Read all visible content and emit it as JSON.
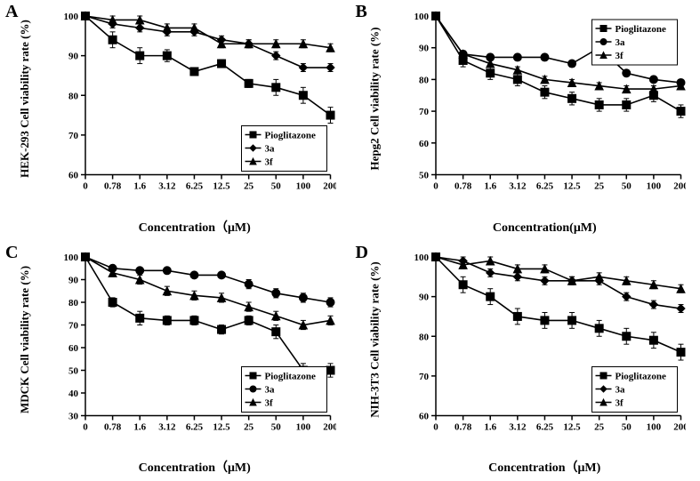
{
  "figure_width": 787,
  "figure_height": 541,
  "background_color": "#ffffff",
  "line_color": "#000000",
  "panels": [
    {
      "letter": "A",
      "ylabel": "HEK-293 Cell viability rate (%)",
      "xlabel": "Concentration（μM)",
      "ylim": [
        60,
        100
      ],
      "ytick_step": 10,
      "xticks": [
        "0",
        "0.78",
        "1.6",
        "3.12",
        "6.25",
        "12.5",
        "25",
        "50",
        "100",
        "200"
      ],
      "legend_pos": "bottom-right",
      "series": [
        {
          "name": "Pioglitazone",
          "marker": "square",
          "y": [
            100,
            94,
            90,
            90,
            86,
            88,
            83,
            82,
            80,
            75
          ],
          "err": [
            0,
            2,
            2,
            1.5,
            1,
            1,
            1,
            2,
            2,
            2
          ]
        },
        {
          "name": "3a",
          "marker": "diamond",
          "y": [
            100,
            98,
            97,
            96,
            96,
            94,
            93,
            90,
            87,
            87
          ],
          "err": [
            0,
            1,
            1,
            1,
            1,
            1,
            1,
            1,
            1,
            1
          ]
        },
        {
          "name": "3f",
          "marker": "triangle",
          "y": [
            100,
            99,
            99,
            97,
            97,
            93,
            93,
            93,
            93,
            92
          ],
          "err": [
            0,
            1,
            1,
            1,
            1,
            1,
            1,
            1,
            1,
            1
          ]
        }
      ]
    },
    {
      "letter": "B",
      "ylabel": "Hepg2 Cell viability rate (%)",
      "xlabel": "Concentration(μM)",
      "ylim": [
        50,
        100
      ],
      "ytick_step": 10,
      "xticks": [
        "0",
        "0.78",
        "1.6",
        "3.12",
        "6.25",
        "12.5",
        "25",
        "50",
        "100",
        "200"
      ],
      "legend_pos": "top-right",
      "series": [
        {
          "name": "Pioglitazone",
          "marker": "square",
          "y": [
            100,
            86,
            82,
            80,
            76,
            74,
            72,
            72,
            75,
            70
          ],
          "err": [
            0,
            2,
            2,
            2,
            2,
            2,
            2,
            2,
            2,
            2
          ]
        },
        {
          "name": "3a",
          "marker": "circle",
          "y": [
            100,
            88,
            87,
            87,
            87,
            85,
            90,
            82,
            80,
            79
          ],
          "err": [
            0,
            1,
            1,
            1,
            1,
            1,
            1,
            1,
            1,
            1
          ]
        },
        {
          "name": "3f",
          "marker": "triangle",
          "y": [
            100,
            88,
            85,
            83,
            80,
            79,
            78,
            77,
            77,
            78
          ],
          "err": [
            0,
            1,
            1,
            1,
            1,
            1,
            1,
            1,
            1,
            1
          ]
        }
      ]
    },
    {
      "letter": "C",
      "ylabel": "MDCK Cell viability rate (%)",
      "xlabel": "Concentration（μM)",
      "ylim": [
        30,
        100
      ],
      "ytick_step": 10,
      "xticks": [
        "0",
        "0.78",
        "1.6",
        "3.12",
        "6.25",
        "12.5",
        "25",
        "50",
        "100",
        "200"
      ],
      "legend_pos": "bottom-right",
      "series": [
        {
          "name": "Pioglitazone",
          "marker": "square",
          "y": [
            100,
            80,
            73,
            72,
            72,
            68,
            72,
            67,
            50,
            50
          ],
          "err": [
            0,
            2,
            3,
            2,
            2,
            2,
            2,
            3,
            3,
            3
          ]
        },
        {
          "name": "3a",
          "marker": "circle",
          "y": [
            100,
            95,
            94,
            94,
            92,
            92,
            88,
            84,
            82,
            80
          ],
          "err": [
            0,
            1,
            1,
            1,
            1,
            1,
            2,
            2,
            2,
            2
          ]
        },
        {
          "name": "3f",
          "marker": "triangle",
          "y": [
            100,
            93,
            90,
            85,
            83,
            82,
            78,
            74,
            70,
            72
          ],
          "err": [
            0,
            1,
            2,
            2,
            2,
            2,
            2,
            2,
            2,
            2
          ]
        }
      ]
    },
    {
      "letter": "D",
      "ylabel": "NIH-3T3 Cell viability rate (%)",
      "xlabel": "Concentration（μM)",
      "ylim": [
        60,
        100
      ],
      "ytick_step": 10,
      "xticks": [
        "0",
        "0.78",
        "1.6",
        "3.12",
        "6.25",
        "12.5",
        "25",
        "50",
        "100",
        "200"
      ],
      "legend_pos": "bottom-right",
      "series": [
        {
          "name": "Pioglitazone",
          "marker": "square",
          "y": [
            100,
            93,
            90,
            85,
            84,
            84,
            82,
            80,
            79,
            76
          ],
          "err": [
            0,
            2,
            2,
            2,
            2,
            2,
            2,
            2,
            2,
            2
          ]
        },
        {
          "name": "3a",
          "marker": "diamond",
          "y": [
            100,
            99,
            96,
            95,
            94,
            94,
            94,
            90,
            88,
            87
          ],
          "err": [
            0,
            1,
            1,
            1,
            1,
            1,
            1,
            1,
            1,
            1
          ]
        },
        {
          "name": "3f",
          "marker": "triangle",
          "y": [
            100,
            98,
            99,
            97,
            97,
            94,
            95,
            94,
            93,
            92
          ],
          "err": [
            0,
            1,
            1,
            1,
            1,
            1,
            1,
            1,
            1,
            1
          ]
        }
      ]
    }
  ],
  "legend_labels": [
    "Pioglitazone",
    "3a",
    "3f"
  ],
  "marker_size": 4.5,
  "line_width": 1.6,
  "axis_fontsize": 11,
  "label_fontsize": 13
}
